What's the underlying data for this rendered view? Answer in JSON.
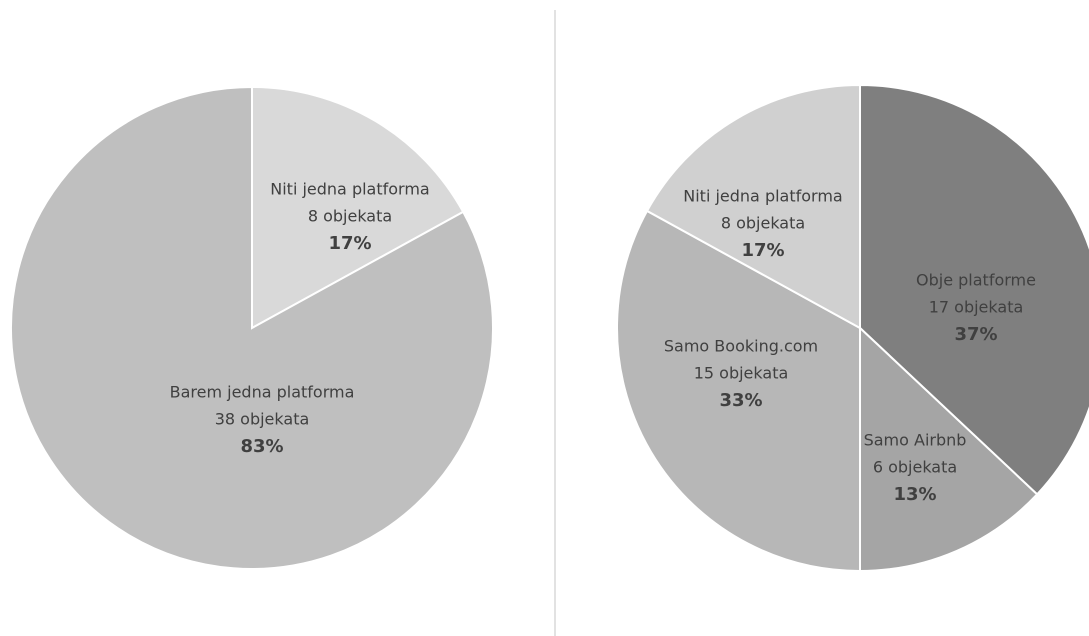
{
  "chart_data": [
    {
      "type": "pie",
      "categories": [
        "Niti jedna platforma",
        "Barem jedna platforma"
      ],
      "values": [
        17,
        83
      ],
      "value_labels": [
        "17%",
        "83%"
      ],
      "count_labels": [
        "8 objekata",
        "38 objekata"
      ],
      "colors": [
        "#d9d9d9",
        "#bfbfbf"
      ]
    },
    {
      "type": "pie",
      "categories": [
        "Obje platforme",
        "Samo Airbnb",
        "Samo Booking.com",
        "Niti jedna platforma"
      ],
      "values": [
        37,
        13,
        33,
        17
      ],
      "value_labels": [
        "37%",
        "13%",
        "33%",
        "17%"
      ],
      "count_labels": [
        "17 objekata",
        "6 objekata",
        "15 objekata",
        "8 objekata"
      ],
      "colors": [
        "#7f7f7f",
        "#a5a5a5",
        "#b7b7b7",
        "#d0d0d0"
      ]
    }
  ]
}
